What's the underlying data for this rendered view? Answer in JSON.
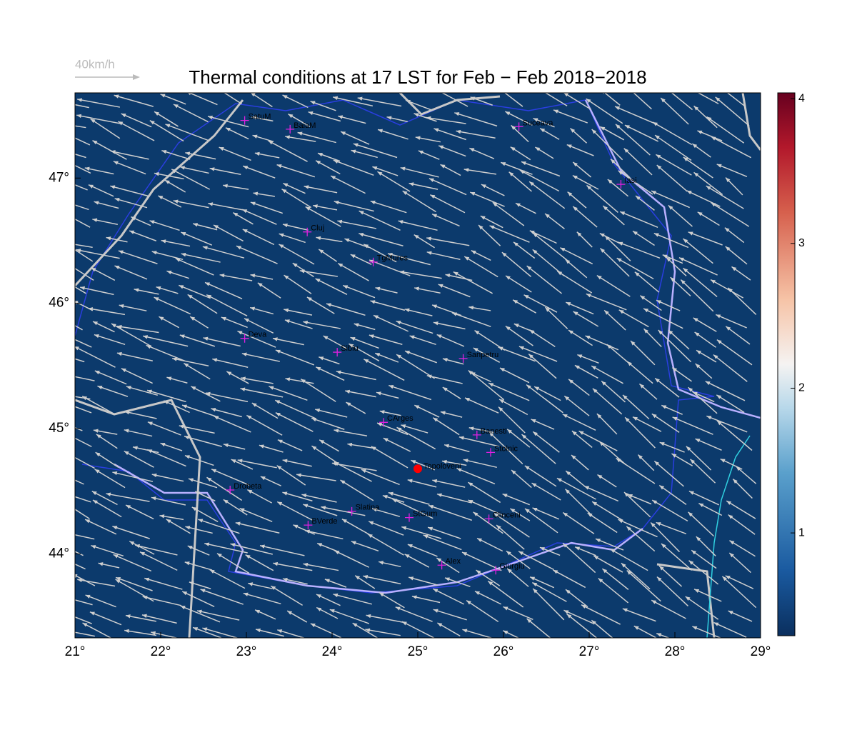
{
  "chart_data": {
    "type": "map",
    "title": "Thermal conditions at 17 LST for Feb − Feb  2018−2018",
    "scale_label": "40km/h",
    "xlim": [
      21,
      29
    ],
    "ylim": [
      43.33,
      47.68
    ],
    "xticks": [
      {
        "value": 21,
        "label": "21°"
      },
      {
        "value": 22,
        "label": "22°"
      },
      {
        "value": 23,
        "label": "23°"
      },
      {
        "value": 24,
        "label": "24°"
      },
      {
        "value": 25,
        "label": "25°"
      },
      {
        "value": 26,
        "label": "26°"
      },
      {
        "value": 27,
        "label": "27°"
      },
      {
        "value": 28,
        "label": "28°"
      },
      {
        "value": 29,
        "label": "29°"
      }
    ],
    "yticks": [
      {
        "value": 44,
        "label": "44°"
      },
      {
        "value": 45,
        "label": "45°"
      },
      {
        "value": 46,
        "label": "46°"
      },
      {
        "value": 47,
        "label": "47°"
      }
    ],
    "colorbar": {
      "clim": [
        0.29,
        4.04
      ],
      "ticks": [
        1,
        2,
        3,
        4
      ]
    },
    "places": [
      {
        "name": "SatuM",
        "lon": 22.98,
        "lat": 47.46
      },
      {
        "name": "BaiaM",
        "lon": 23.51,
        "lat": 47.39
      },
      {
        "name": "Suceava",
        "lon": 26.18,
        "lat": 47.41
      },
      {
        "name": "Iasi",
        "lon": 27.37,
        "lat": 46.95
      },
      {
        "name": "Cluj",
        "lon": 23.71,
        "lat": 46.57
      },
      {
        "name": "TgMures",
        "lon": 24.48,
        "lat": 46.33
      },
      {
        "name": "Deva",
        "lon": 22.98,
        "lat": 45.72
      },
      {
        "name": "Sibiu",
        "lon": 24.06,
        "lat": 45.61
      },
      {
        "name": "Sanpetru",
        "lon": 25.53,
        "lat": 45.56
      },
      {
        "name": "CArges",
        "lon": 24.6,
        "lat": 45.05
      },
      {
        "name": "Banesti",
        "lon": 25.69,
        "lat": 44.95
      },
      {
        "name": "Stolnic",
        "lon": 25.85,
        "lat": 44.81
      },
      {
        "name": "Drobeta",
        "lon": 22.81,
        "lat": 44.51
      },
      {
        "name": "Slatina",
        "lon": 24.23,
        "lat": 44.34
      },
      {
        "name": "StGum",
        "lon": 24.9,
        "lat": 44.29
      },
      {
        "name": "Clinceni",
        "lon": 25.83,
        "lat": 44.28
      },
      {
        "name": "BVerde",
        "lon": 23.72,
        "lat": 44.23
      },
      {
        "name": "Alex",
        "lon": 25.28,
        "lat": 43.91
      },
      {
        "name": "Giurgiu",
        "lon": 25.91,
        "lat": 43.87
      }
    ],
    "highlight": {
      "name": "Topoloveni",
      "lon": 25.0,
      "lat": 44.68,
      "color": "#ff0000"
    }
  }
}
